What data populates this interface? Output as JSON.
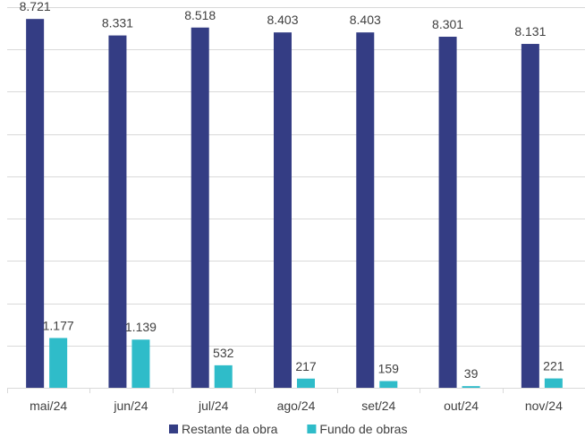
{
  "chart_data": {
    "type": "bar",
    "categories": [
      "mai/24",
      "jun/24",
      "jul/24",
      "ago/24",
      "set/24",
      "out/24",
      "nov/24"
    ],
    "series": [
      {
        "name": "Restante da obra",
        "color": "#343d84",
        "values": [
          8721,
          8331,
          8518,
          8403,
          8403,
          8301,
          8131
        ],
        "labels": [
          "8.721",
          "8.331",
          "8.518",
          "8.403",
          "8.403",
          "8.301",
          "8.131"
        ]
      },
      {
        "name": "Fundo de obras",
        "color": "#2fbcc9",
        "values": [
          1177,
          1139,
          532,
          217,
          159,
          39,
          221
        ],
        "labels": [
          "1.177",
          "1.139",
          "532",
          "217",
          "159",
          "39",
          "221"
        ]
      }
    ],
    "ylim": [
      0,
      9000
    ],
    "grid": true,
    "legend_position": "bottom"
  }
}
